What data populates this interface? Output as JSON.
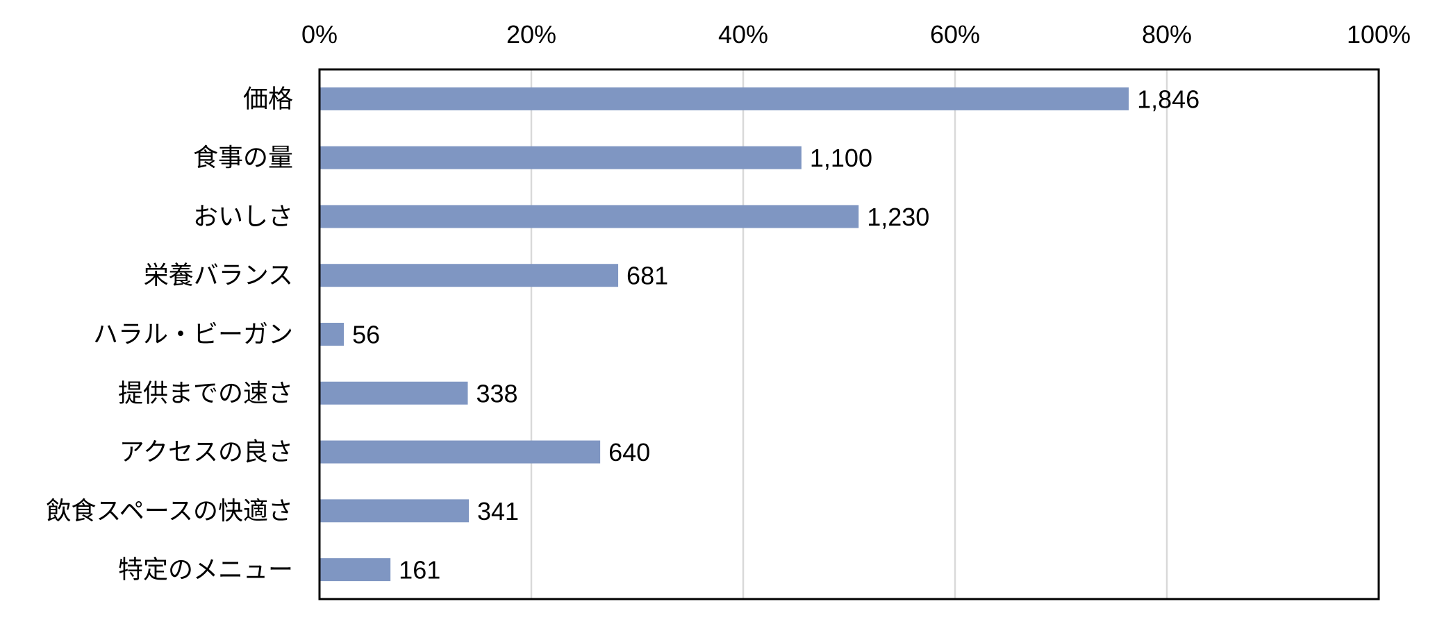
{
  "chart_data": {
    "type": "bar",
    "orientation": "horizontal",
    "categories": [
      "価格",
      "食事の量",
      "おいしさ",
      "栄養バランス",
      "ハラル・ビーガン",
      "提供までの速さ",
      "アクセスの良さ",
      "飲食スペースの快適さ",
      "特定のメニュー"
    ],
    "series": [
      {
        "values": [
          76.4,
          45.5,
          50.9,
          28.2,
          2.3,
          14.0,
          26.5,
          14.1,
          6.7
        ],
        "data_labels": [
          "1,846",
          "1,100",
          "1,230",
          "681",
          "56",
          "338",
          "640",
          "341",
          "161"
        ]
      }
    ],
    "x_ticks": [
      "0%",
      "20%",
      "40%",
      "60%",
      "80%",
      "100%"
    ],
    "xlim": [
      0,
      100
    ],
    "title": "",
    "xlabel": "",
    "ylabel": "",
    "grid": "vertical",
    "legend": "none",
    "colors": {
      "bar": "#7f96c2",
      "grid": "#d9d9d9",
      "axis": "#000000"
    }
  }
}
